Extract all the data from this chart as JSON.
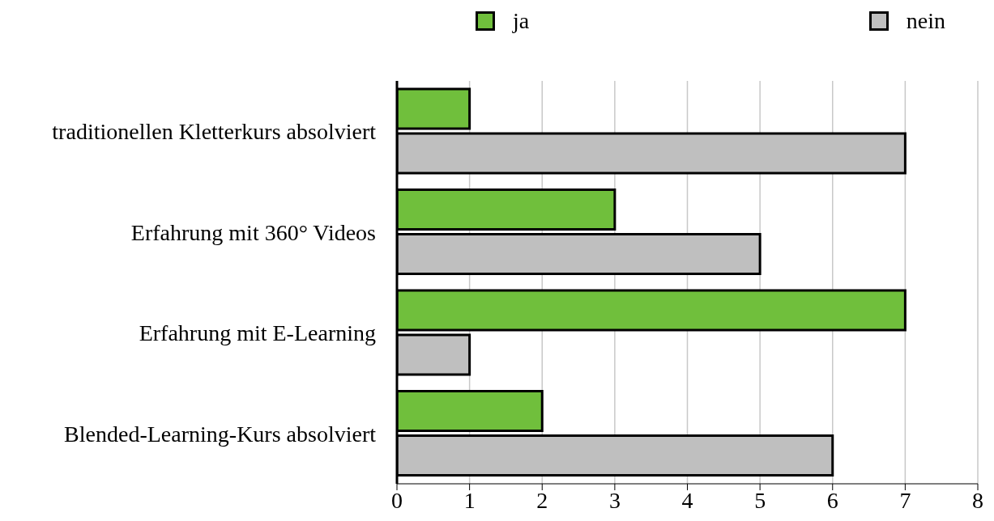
{
  "chart_data": {
    "type": "bar",
    "orientation": "horizontal",
    "categories": [
      "traditionellen Kletterkurs absolviert",
      "Erfahrung mit 360° Videos",
      "Erfahrung mit E-Learning",
      "Blended-Learning-Kurs absolviert"
    ],
    "series": [
      {
        "name": "ja",
        "color": "#70bf3c",
        "values": [
          1,
          3,
          7,
          2
        ]
      },
      {
        "name": "nein",
        "color": "#bfbfbf",
        "values": [
          7,
          5,
          1,
          6
        ]
      }
    ],
    "xlim": [
      0,
      8
    ],
    "xticks": [
      0,
      1,
      2,
      3,
      4,
      5,
      6,
      7,
      8
    ],
    "grid": "x",
    "legend": "top right"
  }
}
